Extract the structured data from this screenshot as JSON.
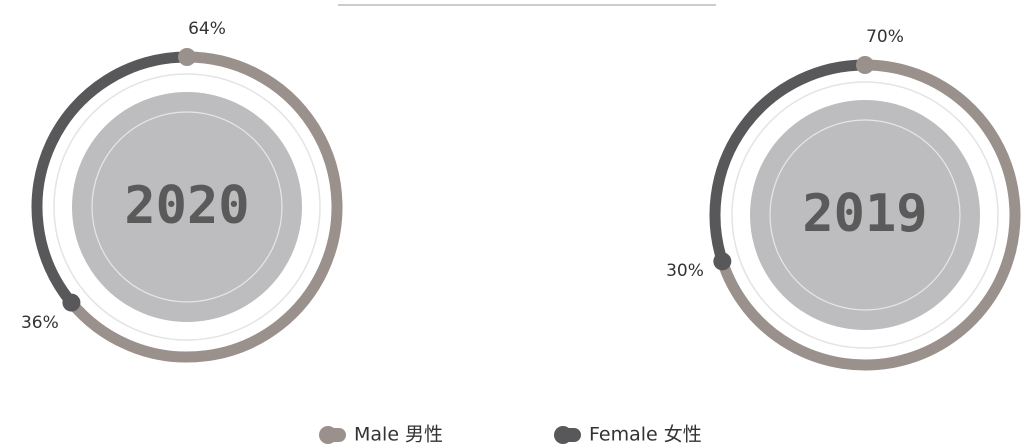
{
  "chart_data": {
    "type": "donut",
    "categories": [
      "2020",
      "2019"
    ],
    "series": [
      {
        "name": "Male 男性",
        "color": "#9a918c",
        "values": [
          64,
          70
        ],
        "value_labels": [
          "64%",
          "70%"
        ]
      },
      {
        "name": "Female 女性",
        "color": "#58585a",
        "values": [
          36,
          30
        ],
        "value_labels": [
          "36%",
          "30%"
        ]
      }
    ]
  }
}
